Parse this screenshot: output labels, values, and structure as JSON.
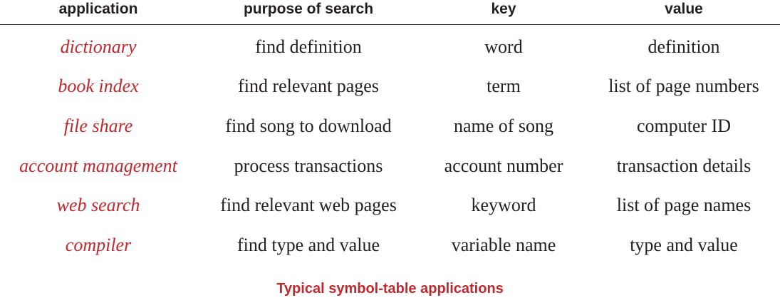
{
  "table": {
    "headers": [
      "application",
      "purpose of search",
      "key",
      "value"
    ],
    "rows": [
      [
        "dictionary",
        "find definition",
        "word",
        "definition"
      ],
      [
        "book index",
        "find relevant pages",
        "term",
        "list of page numbers"
      ],
      [
        "file share",
        "find song to download",
        "name of song",
        "computer ID"
      ],
      [
        "account management",
        "process transactions",
        "account number",
        "transaction details"
      ],
      [
        "web search",
        "find relevant web pages",
        "keyword",
        "list of page names"
      ],
      [
        "compiler",
        "find type and value",
        "variable name",
        "type and value"
      ]
    ]
  },
  "caption": "Typical symbol-table applications",
  "colors": {
    "accent": "#c0282e",
    "text": "#231f20"
  }
}
